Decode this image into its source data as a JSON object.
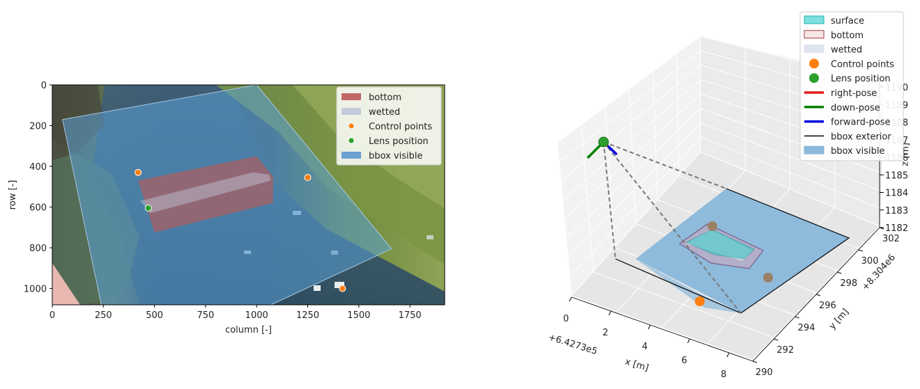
{
  "chart_data": [
    {
      "type": "scatter",
      "background": "camera photo of a shallow stream with vegetation",
      "xlabel": "column [-]",
      "ylabel": "row [-]",
      "xlim": [
        0,
        1920
      ],
      "ylim": [
        1080,
        0
      ],
      "xticks": [
        0,
        250,
        500,
        750,
        1000,
        1250,
        1500,
        1750
      ],
      "yticks": [
        0,
        200,
        400,
        600,
        800,
        1000
      ],
      "colors": {
        "bottom": "#b85a5a",
        "wetted": "#c3cbdc",
        "control": "#ff7f0e",
        "lens": "#2ca02c",
        "bbox": "#4f8fc6"
      },
      "legend": {
        "position": "top-right",
        "entries": [
          {
            "label": "bottom",
            "kind": "patch",
            "color": "#c06868"
          },
          {
            "label": "wetted",
            "kind": "patch",
            "color": "#c3cbdc"
          },
          {
            "label": "Control points",
            "kind": "dot",
            "color": "#ff7f0e"
          },
          {
            "label": "Lens position",
            "kind": "dot",
            "color": "#2ca02c"
          },
          {
            "label": "bbox visible",
            "kind": "patch",
            "color": "#6aa0cf"
          }
        ]
      },
      "bbox_visible": [
        [
          50,
          170
        ],
        [
          1000,
          0
        ],
        [
          1660,
          805
        ],
        [
          1070,
          1080
        ],
        [
          240,
          1080
        ]
      ],
      "bottom": [
        [
          420,
          470
        ],
        [
          1000,
          350
        ],
        [
          1080,
          450
        ],
        [
          1080,
          580
        ],
        [
          500,
          725
        ]
      ],
      "wetted": [
        [
          430,
          570
        ],
        [
          980,
          430
        ],
        [
          1060,
          440
        ],
        [
          1070,
          470
        ],
        [
          480,
          630
        ]
      ],
      "control_points": [
        [
          420,
          430
        ],
        [
          1250,
          455
        ],
        [
          1420,
          1000
        ]
      ],
      "lens_position": [
        [
          470,
          605
        ]
      ]
    },
    {
      "type": "scatter",
      "projection": "3d",
      "xlabel": "x [m]",
      "ylabel": "y [m]",
      "zlabel": "z [m]",
      "x_offset": "+6.4273e5",
      "y_offset": "+8.304e6",
      "xticks": [
        0,
        2,
        4,
        6,
        8
      ],
      "yticks": [
        290,
        292,
        294,
        296,
        298,
        300,
        302
      ],
      "zticks": [
        1182,
        1183,
        1184,
        1185,
        1186,
        1187,
        1188,
        1189,
        1190
      ],
      "zticks_visible": [
        "1182",
        "1183",
        "1184",
        "1185",
        "1186",
        "1187",
        "1188",
        "1189",
        "1190"
      ],
      "legend": {
        "position": "top-right",
        "entries": [
          {
            "label": "surface",
            "kind": "patch",
            "color": "#7fdede",
            "edge": "#17b7b7"
          },
          {
            "label": "bottom",
            "kind": "patch",
            "color": "#f7e6e6",
            "edge": "#a23b3b"
          },
          {
            "label": "wetted",
            "kind": "patch",
            "color": "#e0e4ef",
            "edge": "#e0e4ef"
          },
          {
            "label": "Control points",
            "kind": "dot",
            "color": "#ff7f0e"
          },
          {
            "label": "Lens position",
            "kind": "dot",
            "color": "#2ca02c"
          },
          {
            "label": "right-pose",
            "kind": "line",
            "color": "#e31a1c"
          },
          {
            "label": "down-pose",
            "kind": "line",
            "color": "#008000"
          },
          {
            "label": "forward-pose",
            "kind": "line",
            "color": "#0000e0"
          },
          {
            "label": "bbox exterior",
            "kind": "thinline",
            "color": "#000000"
          },
          {
            "label": "bbox visible",
            "kind": "patch",
            "color": "#8cb9db",
            "edge": "#8cb9db"
          }
        ]
      },
      "lens_position": {
        "x": 0.0,
        "y": 290.5,
        "z": 1187.5
      },
      "control_points": [
        {
          "x": 4.6,
          "y": 296.9,
          "z": 1182.0
        },
        {
          "x": 8.4,
          "y": 298.8,
          "z": 1182.0
        },
        {
          "x": 6.2,
          "y": 291.3,
          "z": 1182.0
        }
      ]
    }
  ]
}
